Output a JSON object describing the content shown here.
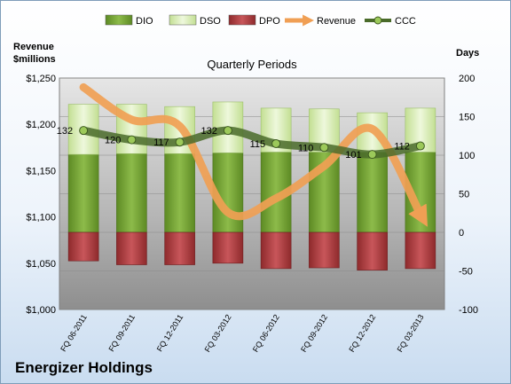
{
  "chart_data": {
    "type": "bar",
    "subtitle": "Quarterly Periods",
    "company": "Energizer Holdings",
    "left_axis_title": "Revenue\n$millions",
    "right_axis_title": "Days",
    "categories": [
      "FQ 06-2011",
      "FQ 09-2011",
      "FQ 12-2011",
      "FQ 03-2012",
      "FQ 06-2012",
      "FQ 09-2012",
      "FQ 12-2012",
      "FQ 03-2013"
    ],
    "left_ylim": [
      1000,
      1250
    ],
    "left_ticks": [
      "$1,000",
      "$1,050",
      "$1,100",
      "$1,150",
      "$1,200",
      "$1,250"
    ],
    "left_tick_values": [
      1000,
      1050,
      1100,
      1150,
      1200,
      1250
    ],
    "right_ylim": [
      -100,
      200
    ],
    "right_ticks": [
      "-100",
      "-50",
      "0",
      "50",
      "100",
      "150",
      "200"
    ],
    "right_tick_values": [
      -100,
      -50,
      0,
      50,
      100,
      150,
      200
    ],
    "legend_placement": "top",
    "series": [
      {
        "name": "DIO",
        "axis": "right",
        "color": "#7aa33a",
        "values": [
          101,
          102,
          102,
          103,
          104,
          104,
          104,
          104
        ]
      },
      {
        "name": "DSO",
        "axis": "right",
        "color": "#d7ecb5",
        "values": [
          65,
          64,
          61,
          66,
          57,
          56,
          51,
          57
        ]
      },
      {
        "name": "DPO",
        "axis": "right",
        "color": "#b03a3c",
        "values": [
          -37,
          -42,
          -42,
          -40,
          -47,
          -46,
          -49,
          -47
        ]
      },
      {
        "name": "Revenue",
        "axis": "left",
        "color": "#f09f54",
        "values": [
          1240,
          1205,
          1198,
          1105,
          1120,
          1155,
          1195,
          1103
        ]
      },
      {
        "name": "CCC",
        "axis": "right",
        "color": "#4a6b2a",
        "values": [
          132,
          120,
          117,
          132,
          115,
          110,
          101,
          112
        ]
      }
    ],
    "ccc_labels": [
      "132",
      "120",
      "117",
      "132",
      "115",
      "110",
      "101",
      "112"
    ]
  }
}
